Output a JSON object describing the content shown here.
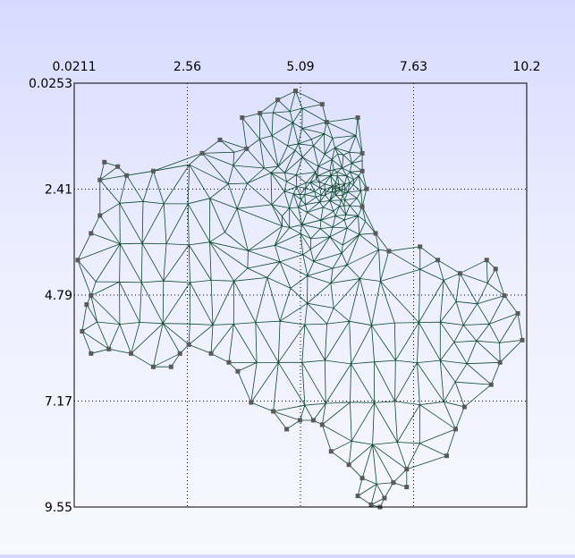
{
  "chart_data": {
    "type": "mesh",
    "x_ticks": [
      "0.0211",
      "2.56",
      "5.09",
      "7.63",
      "10.2"
    ],
    "y_ticks": [
      "0.0253",
      "2.41",
      "4.79",
      "7.17",
      "9.55"
    ],
    "xlim": [
      0.0211,
      10.2
    ],
    "ylim": [
      0.0253,
      9.55
    ],
    "y_inverted": true,
    "x_axis_position": "top",
    "grid": "dotted",
    "colors": {
      "edges": "#0b4a2a",
      "nodes": "#5a5a5a",
      "frame": "#000000"
    },
    "boundary": [
      [
        5.0,
        0.2
      ],
      [
        5.6,
        0.5
      ],
      [
        5.7,
        0.9
      ],
      [
        6.4,
        0.8
      ],
      [
        6.5,
        1.6
      ],
      [
        6.5,
        2.0
      ],
      [
        6.6,
        2.4
      ],
      [
        6.5,
        2.8
      ],
      [
        6.8,
        3.4
      ],
      [
        7.1,
        3.8
      ],
      [
        7.8,
        3.7
      ],
      [
        8.2,
        4.0
      ],
      [
        8.7,
        4.3
      ],
      [
        9.3,
        4.0
      ],
      [
        9.5,
        4.2
      ],
      [
        9.7,
        4.8
      ],
      [
        10.0,
        5.2
      ],
      [
        10.1,
        5.8
      ],
      [
        9.6,
        6.3
      ],
      [
        9.4,
        6.8
      ],
      [
        8.8,
        7.3
      ],
      [
        8.6,
        7.8
      ],
      [
        8.4,
        8.4
      ],
      [
        7.5,
        8.7
      ],
      [
        7.5,
        9.1
      ],
      [
        7.2,
        9.0
      ],
      [
        7.0,
        9.35
      ],
      [
        6.9,
        9.55
      ],
      [
        6.7,
        9.5
      ],
      [
        6.4,
        9.3
      ],
      [
        6.5,
        8.9
      ],
      [
        6.2,
        8.6
      ],
      [
        5.8,
        8.3
      ],
      [
        5.6,
        7.7
      ],
      [
        5.4,
        7.6
      ],
      [
        5.1,
        7.6
      ],
      [
        4.8,
        7.8
      ],
      [
        4.5,
        7.4
      ],
      [
        4.0,
        7.2
      ],
      [
        3.7,
        6.5
      ],
      [
        3.5,
        6.3
      ],
      [
        3.1,
        6.1
      ],
      [
        2.6,
        5.9
      ],
      [
        2.4,
        6.1
      ],
      [
        2.2,
        6.4
      ],
      [
        1.8,
        6.4
      ],
      [
        1.3,
        6.1
      ],
      [
        0.8,
        6.0
      ],
      [
        0.4,
        6.1
      ],
      [
        0.2,
        5.6
      ],
      [
        0.3,
        5.0
      ],
      [
        0.4,
        4.8
      ],
      [
        0.1,
        4.0
      ],
      [
        0.4,
        3.4
      ],
      [
        0.6,
        3.0
      ],
      [
        0.6,
        2.2
      ],
      [
        0.7,
        1.8
      ],
      [
        1.0,
        1.9
      ],
      [
        1.2,
        2.1
      ],
      [
        1.8,
        2.0
      ],
      [
        2.9,
        1.6
      ],
      [
        3.3,
        1.3
      ],
      [
        3.9,
        1.5
      ],
      [
        3.8,
        0.8
      ],
      [
        4.2,
        0.7
      ],
      [
        4.6,
        0.4
      ]
    ],
    "refinement_center": [
      5.85,
      2.4
    ]
  }
}
